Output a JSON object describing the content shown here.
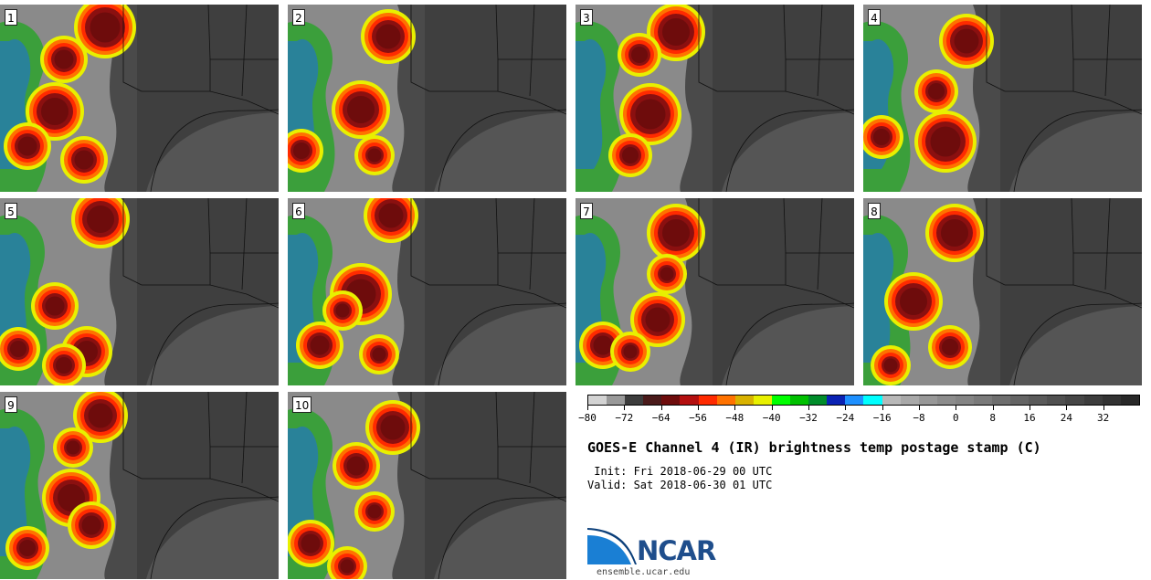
{
  "panels": [
    {
      "label": "1"
    },
    {
      "label": "2"
    },
    {
      "label": "3"
    },
    {
      "label": "4"
    },
    {
      "label": "5"
    },
    {
      "label": "6"
    },
    {
      "label": "7"
    },
    {
      "label": "8"
    },
    {
      "label": "9"
    },
    {
      "label": "10"
    }
  ],
  "colorbar": {
    "colors": [
      "#d3d3d3",
      "#999999",
      "#3c3c3c",
      "#4a1a1a",
      "#6e0c0c",
      "#b40f0f",
      "#ff2a00",
      "#ff7200",
      "#d9b200",
      "#e8f000",
      "#00ff00",
      "#00c000",
      "#008c2a",
      "#0a22b4",
      "#1e90ff",
      "#00ffff",
      "#b8b8b8",
      "#a8a8a8",
      "#989898",
      "#8c8c8c",
      "#848484",
      "#7a7a7a",
      "#6e6e6e",
      "#646464",
      "#5a5a5a",
      "#505050",
      "#464646",
      "#3c3c3c",
      "#323232",
      "#282828"
    ],
    "tick_values": [
      -80,
      -72,
      -64,
      -56,
      -48,
      -40,
      -32,
      -24,
      -16,
      -8,
      0,
      8,
      16,
      24,
      32
    ],
    "tick_labels": [
      "−80",
      "−72",
      "−64",
      "−56",
      "−48",
      "−40",
      "−32",
      "−24",
      "−16",
      "−8",
      "0",
      "8",
      "16",
      "24",
      "32"
    ],
    "min": -80,
    "max": 40
  },
  "title": "GOES-E Channel 4 (IR) brightness temp postage stamp (C)",
  "init_line": " Init: Fri 2018-06-29 00 UTC",
  "valid_line": "Valid: Sat 2018-06-30 01 UTC",
  "logo_text": "NCAR",
  "site": "ensemble.ucar.edu"
}
